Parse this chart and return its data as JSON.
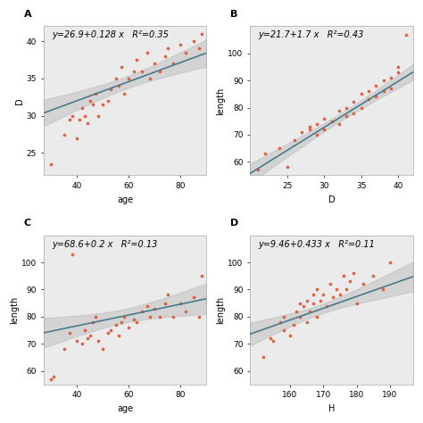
{
  "panel_A": {
    "label": "A",
    "equation": "y=26.9+0.128 x   R²=0.35",
    "xlabel": "age",
    "ylabel": "D",
    "xlim": [
      27,
      90
    ],
    "ylim": [
      22,
      42
    ],
    "xticks": [
      40,
      60,
      80
    ],
    "yticks": [
      25,
      30,
      35,
      40
    ],
    "intercept": 26.9,
    "slope": 0.128,
    "scatter_x": [
      30,
      35,
      37,
      38,
      40,
      41,
      42,
      43,
      44,
      45,
      46,
      47,
      48,
      50,
      52,
      53,
      55,
      56,
      57,
      58,
      60,
      62,
      63,
      65,
      67,
      68,
      70,
      72,
      74,
      75,
      77,
      80,
      82,
      85,
      87,
      88
    ],
    "scatter_y": [
      23.5,
      27.5,
      29.5,
      30,
      27,
      29.5,
      31,
      30,
      29,
      32,
      31.5,
      33,
      30,
      31.5,
      32,
      33.5,
      35,
      34,
      36.5,
      33,
      35,
      36,
      37.5,
      36,
      38.5,
      35,
      37,
      36,
      38,
      39,
      37,
      39.5,
      38.5,
      40,
      39,
      41
    ]
  },
  "panel_B": {
    "label": "B",
    "equation": "y=21.7+1.7 x   R²=0.43",
    "xlabel": "D",
    "ylabel": "length",
    "xlim": [
      20,
      42
    ],
    "ylim": [
      55,
      110
    ],
    "xticks": [
      25,
      30,
      35,
      40
    ],
    "yticks": [
      60,
      70,
      80,
      90,
      100
    ],
    "intercept": 21.7,
    "slope": 1.7,
    "scatter_x": [
      21,
      22,
      24,
      25,
      26,
      27,
      28,
      28,
      29,
      29,
      30,
      30,
      31,
      32,
      32,
      33,
      33,
      34,
      34,
      35,
      35,
      36,
      36,
      37,
      37,
      38,
      38,
      39,
      39,
      40,
      40,
      41
    ],
    "scatter_y": [
      57,
      63,
      65,
      58,
      68,
      71,
      72,
      73,
      74,
      70,
      76,
      72,
      75,
      79,
      74,
      80,
      77,
      78,
      82,
      80,
      85,
      83,
      86,
      84,
      88,
      86,
      90,
      87,
      91,
      93,
      95,
      107
    ]
  },
  "panel_C": {
    "label": "C",
    "equation": "y=68.6+0.2 x   R²=0.13",
    "xlabel": "age",
    "ylabel": "length",
    "xlim": [
      27,
      90
    ],
    "ylim": [
      55,
      110
    ],
    "xticks": [
      40,
      60,
      80
    ],
    "yticks": [
      60,
      70,
      80,
      90,
      100
    ],
    "intercept": 68.6,
    "slope": 0.2,
    "scatter_x": [
      30,
      31,
      35,
      37,
      38,
      40,
      42,
      43,
      44,
      45,
      46,
      47,
      48,
      50,
      52,
      53,
      55,
      56,
      57,
      58,
      60,
      62,
      63,
      65,
      67,
      68,
      70,
      72,
      74,
      75,
      77,
      80,
      82,
      85,
      87,
      88
    ],
    "scatter_y": [
      57,
      58,
      68,
      74,
      103,
      71,
      70,
      75,
      72,
      73,
      78,
      80,
      71,
      68,
      74,
      75,
      77,
      73,
      78,
      80,
      76,
      79,
      78,
      82,
      84,
      80,
      83,
      80,
      85,
      88,
      80,
      85,
      82,
      87,
      80,
      95
    ]
  },
  "panel_D": {
    "label": "D",
    "equation": "y=9.46+0.433 x   R²=0.11",
    "xlabel": "H",
    "ylabel": "length",
    "xlim": [
      148,
      197
    ],
    "ylim": [
      55,
      110
    ],
    "xticks": [
      160,
      170,
      180,
      190
    ],
    "yticks": [
      60,
      70,
      80,
      90,
      100
    ],
    "intercept": 9.46,
    "slope": 0.433,
    "scatter_x": [
      152,
      154,
      155,
      157,
      158,
      158,
      160,
      161,
      162,
      163,
      163,
      164,
      165,
      165,
      166,
      167,
      167,
      168,
      168,
      169,
      170,
      171,
      172,
      173,
      174,
      175,
      176,
      177,
      178,
      179,
      180,
      182,
      185,
      188,
      190
    ],
    "scatter_y": [
      65,
      72,
      71,
      78,
      80,
      75,
      73,
      77,
      82,
      80,
      85,
      84,
      78,
      86,
      82,
      85,
      88,
      80,
      90,
      86,
      88,
      84,
      92,
      87,
      90,
      88,
      95,
      90,
      93,
      96,
      85,
      92,
      95,
      90,
      100
    ]
  },
  "scatter_color": "#e05a3a",
  "line_color": "#4a7a8a",
  "ci_color": "#c0c0c0",
  "bg_color": "#ffffff",
  "panel_bg": "#ebebeb",
  "label_fontsize": 8,
  "eq_fontsize": 7,
  "axis_label_fontsize": 7,
  "tick_fontsize": 6.5
}
